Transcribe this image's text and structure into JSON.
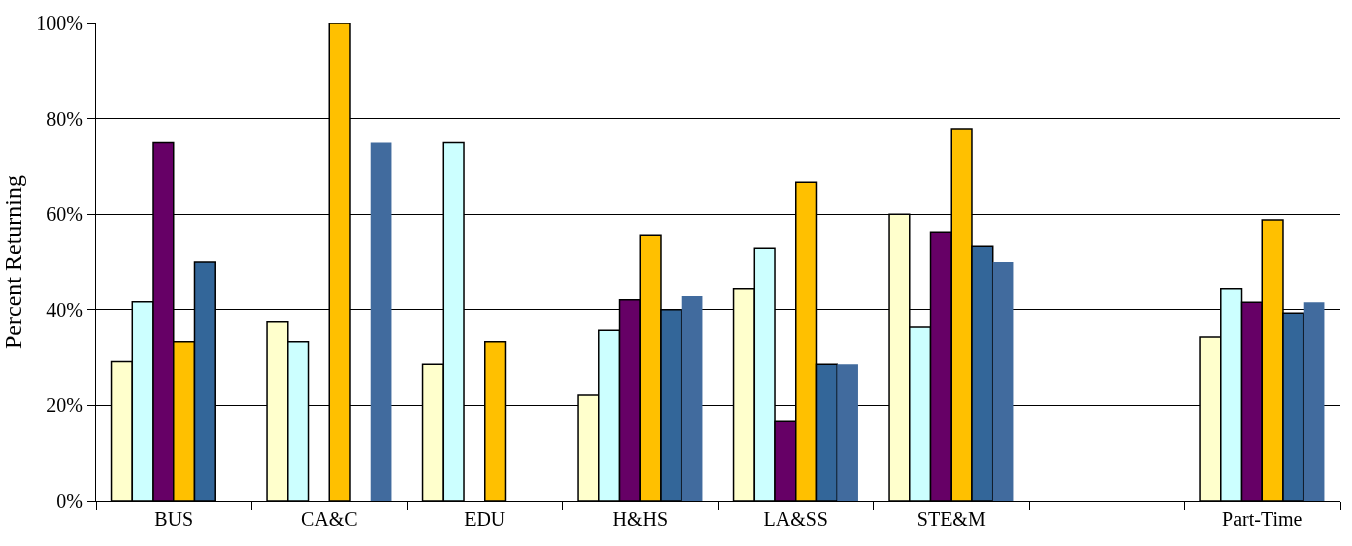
{
  "chart_data": {
    "type": "bar",
    "ylabel": "Percent Returning",
    "categories": [
      "BUS",
      "CA&C",
      "EDU",
      "H&HS",
      "LA&SS",
      "STE&M",
      null,
      "Part-Time"
    ],
    "series": [
      {
        "color": "#ffffcc",
        "values": [
          29.2,
          37.5,
          28.6,
          22.2,
          44.4,
          60,
          null,
          34.3
        ]
      },
      {
        "color": "#ccffff",
        "values": [
          41.7,
          33.3,
          75,
          35.7,
          52.9,
          36.4,
          null,
          44.4
        ]
      },
      {
        "color": "#660066",
        "values": [
          75,
          null,
          null,
          42.1,
          16.7,
          56.2,
          null,
          41.6
        ]
      },
      {
        "color": "#ffc000",
        "values": [
          33.3,
          100,
          33.3,
          55.6,
          66.7,
          77.8,
          null,
          58.8
        ]
      },
      {
        "color": "#336699",
        "values": [
          50,
          null,
          null,
          40,
          28.6,
          53.3,
          null,
          39.3
        ]
      },
      {
        "color": "#416b9e",
        "values": [
          null,
          75,
          null,
          42.9,
          28.6,
          50,
          null,
          41.6
        ]
      }
    ],
    "ylim": [
      0,
      100
    ],
    "yticks": [
      {
        "value": 0,
        "label": "0%"
      },
      {
        "value": 20,
        "label": "20%"
      },
      {
        "value": 40,
        "label": "40%"
      },
      {
        "value": 60,
        "label": "60%"
      },
      {
        "value": 80,
        "label": "80%"
      },
      {
        "value": 100,
        "label": "100%"
      }
    ],
    "grid": "y"
  }
}
